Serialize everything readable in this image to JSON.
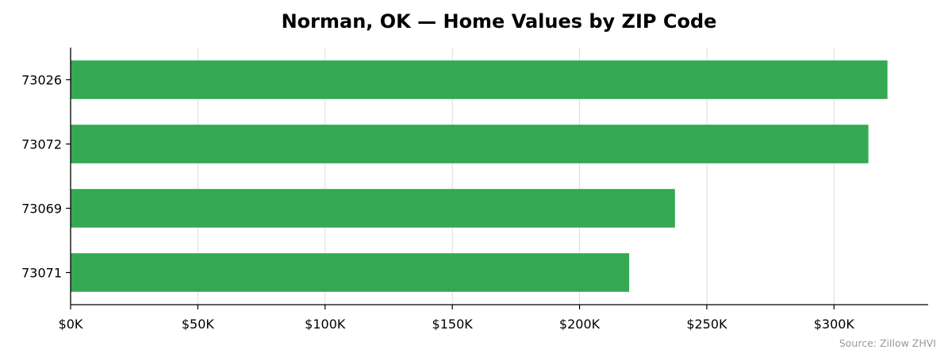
{
  "chart_data": {
    "type": "bar",
    "orientation": "horizontal",
    "title": "Norman, OK — Home Values by ZIP Code",
    "categories": [
      "73026",
      "73072",
      "73069",
      "73071"
    ],
    "values": [
      321000,
      313500,
      237500,
      219500
    ],
    "xlim": [
      0,
      337000
    ],
    "x_ticks": [
      0,
      50000,
      100000,
      150000,
      200000,
      250000,
      300000
    ],
    "x_tick_labels": [
      "$0K",
      "$50K",
      "$100K",
      "$150K",
      "$200K",
      "$250K",
      "$300K"
    ],
    "xlabel": "",
    "ylabel": "",
    "grid": "vertical",
    "bar_color": "#34a853",
    "source_note": "Source: Zillow ZHVI"
  }
}
